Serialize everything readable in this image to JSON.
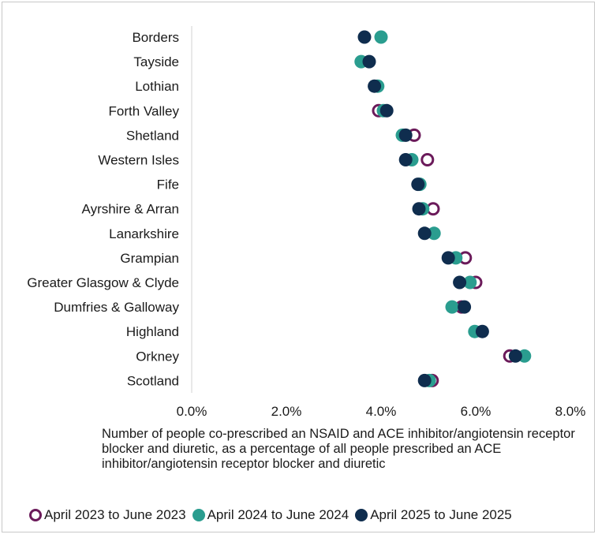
{
  "chart_data": {
    "type": "scatter",
    "orientation": "horizontal-dot-plot",
    "categories": [
      "Borders",
      "Tayside",
      "Lothian",
      "Forth Valley",
      "Shetland",
      "Western Isles",
      "Fife",
      "Ayrshire & Arran",
      "Lanarkshire",
      "Grampian",
      "Greater Glasgow & Clyde",
      "Dumfries & Galloway",
      "Highland",
      "Orkney",
      "Scotland"
    ],
    "series": [
      {
        "name": "April 2023 to June 2023",
        "style": "hollow",
        "color": "#6b1a5a",
        "values": [
          null,
          null,
          null,
          3.95,
          4.7,
          4.98,
          null,
          5.1,
          null,
          5.78,
          6.0,
          5.7,
          null,
          6.72,
          5.08
        ]
      },
      {
        "name": "April 2024 to June 2024",
        "style": "filled",
        "color": "#2a9d8f",
        "values": [
          4.0,
          3.58,
          3.93,
          4.05,
          4.45,
          4.65,
          4.82,
          4.88,
          5.12,
          5.58,
          5.88,
          5.5,
          5.98,
          7.03,
          5.02
        ]
      },
      {
        "name": "April 2025 to June 2025",
        "style": "filled",
        "color": "#0f2d4e",
        "values": [
          3.65,
          3.75,
          3.86,
          4.12,
          4.52,
          4.52,
          4.78,
          4.8,
          4.92,
          5.42,
          5.66,
          5.76,
          6.14,
          6.84,
          4.92
        ]
      }
    ],
    "xlim": [
      0,
      8
    ],
    "xticks": [
      0,
      2,
      4,
      6,
      8
    ],
    "xtick_labels": [
      "0.0%",
      "2.0%",
      "4.0%",
      "6.0%",
      "8.0%"
    ],
    "xlabel": "Number of people co-prescribed an NSAID and ACE inhibitor/angiotensin receptor blocker and diuretic, as a percentage of all people prescribed an ACE inhibitor/angiotensin receptor blocker and diuretic",
    "ylabel": "",
    "title": "",
    "grid": false,
    "legend_position": "bottom"
  }
}
